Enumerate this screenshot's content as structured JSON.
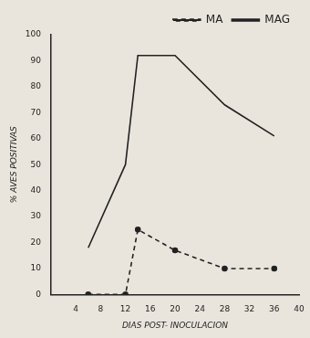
{
  "chart_data": {
    "type": "line",
    "x_label": "DIAS POST- INOCULACION",
    "y_label": "% AVES POSITIVAS",
    "x": [
      6,
      12,
      14,
      20,
      28,
      36
    ],
    "series": [
      {
        "name": "MA",
        "color": "#222222",
        "line_style": "dashed",
        "marker": "circle",
        "values": [
          0,
          0,
          25,
          17,
          10,
          10
        ]
      },
      {
        "name": "MAG",
        "color": "#222222",
        "line_style": "solid",
        "marker": "none",
        "values": [
          18,
          50,
          92,
          92,
          73,
          61
        ]
      }
    ],
    "xlim": [
      0,
      40
    ],
    "xticks": [
      4,
      8,
      12,
      16,
      20,
      24,
      28,
      32,
      36,
      40
    ],
    "ylim": [
      0,
      100
    ],
    "yticks": [
      0,
      10,
      20,
      30,
      40,
      50,
      60,
      70,
      80,
      90,
      100
    ],
    "grid": false,
    "legend": "top-right"
  }
}
